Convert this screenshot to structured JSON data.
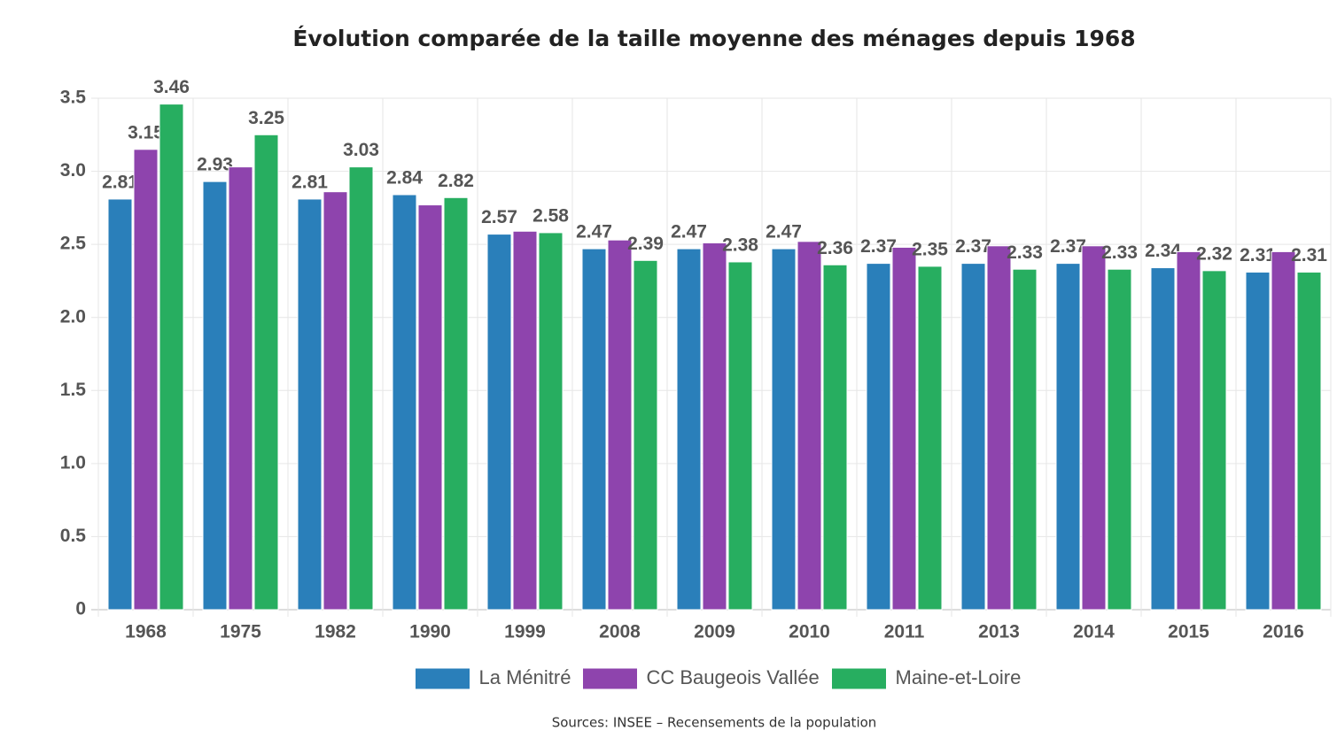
{
  "chart_data": {
    "type": "bar",
    "title": "Évolution comparée de la taille moyenne des ménages depuis 1968",
    "source": "Sources: INSEE – Recensements de la population",
    "categories": [
      "1968",
      "1975",
      "1982",
      "1990",
      "1999",
      "2008",
      "2009",
      "2010",
      "2011",
      "2013",
      "2014",
      "2015",
      "2016"
    ],
    "series": [
      {
        "name": "La Ménitré",
        "color": "#2a7fba",
        "values": [
          2.81,
          2.93,
          2.81,
          2.84,
          2.57,
          2.47,
          2.47,
          2.47,
          2.37,
          2.37,
          2.37,
          2.34,
          2.31
        ],
        "value_labels": [
          "2.81",
          "2.93",
          "2.81",
          "2.84",
          "2.57",
          "2.47",
          "2.47",
          "2.47",
          "2.37",
          "2.37",
          "2.37",
          "2.34",
          "2.31"
        ]
      },
      {
        "name": "CC Baugeois Vallée",
        "color": "#8e44ad",
        "values": [
          3.15,
          3.03,
          2.86,
          2.77,
          2.59,
          2.53,
          2.51,
          2.52,
          2.48,
          2.49,
          2.49,
          2.45,
          2.45
        ],
        "value_labels": [
          "3.15",
          null,
          null,
          null,
          null,
          null,
          null,
          null,
          null,
          null,
          null,
          null,
          null
        ]
      },
      {
        "name": "Maine-et-Loire",
        "color": "#27ae60",
        "values": [
          3.46,
          3.25,
          3.03,
          2.82,
          2.58,
          2.39,
          2.38,
          2.36,
          2.35,
          2.33,
          2.33,
          2.32,
          2.31
        ],
        "value_labels": [
          "3.46",
          "3.25",
          "3.03",
          "2.82",
          "2.58",
          "2.39",
          "2.38",
          "2.36",
          "2.35",
          "2.33",
          "2.33",
          "2.32",
          "2.31"
        ]
      }
    ],
    "ylim": [
      0,
      3.5
    ],
    "yticks": [
      0,
      0.5,
      {
        "value": 1,
        "label": "1.0"
      },
      1.5,
      {
        "value": 2,
        "label": "2.0"
      },
      2.5,
      {
        "value": 3,
        "label": "3.0"
      },
      3.5
    ],
    "grid": true,
    "legend": "bottom"
  }
}
